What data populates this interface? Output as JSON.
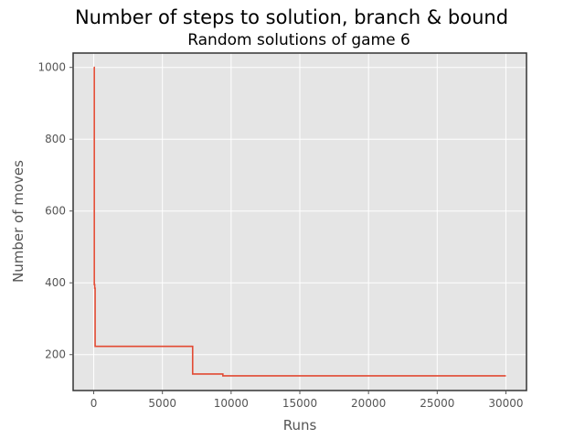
{
  "chart_data": {
    "type": "line",
    "title": "Number of steps to solution, branch & bound",
    "subtitle": "Random solutions of game 6",
    "xlabel": "Runs",
    "ylabel": "Number of moves",
    "xlim": [
      -1500,
      31500
    ],
    "ylim": [
      100,
      1040
    ],
    "xticks": [
      0,
      5000,
      10000,
      15000,
      20000,
      25000,
      30000
    ],
    "yticks": [
      200,
      400,
      600,
      800,
      1000
    ],
    "grid": true,
    "background": "#e5e5e5",
    "series": [
      {
        "color": "#e24a33",
        "x": [
          0,
          40,
          40,
          70,
          70,
          100,
          100,
          7200,
          7200,
          9400,
          9400,
          30000
        ],
        "y": [
          1000,
          1000,
          395,
          395,
          385,
          385,
          223,
          223,
          146,
          146,
          141,
          141
        ]
      }
    ]
  }
}
